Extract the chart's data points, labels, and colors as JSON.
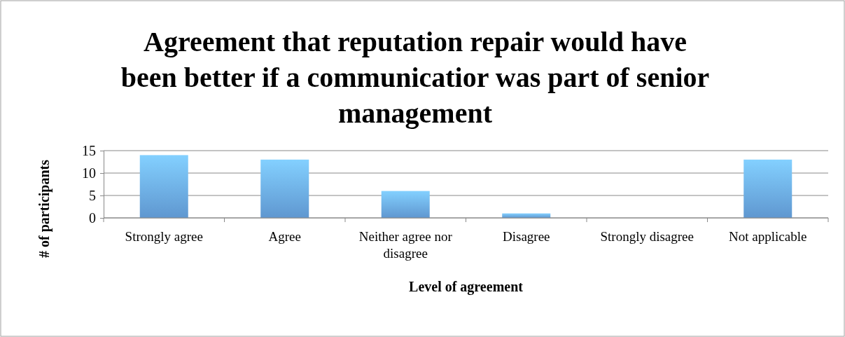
{
  "chart_data": {
    "type": "bar",
    "title": "Agreement that reputation repair would have been better if a communicatior was part of senior management",
    "xlabel": "Level of agreement",
    "ylabel": "# of participants",
    "categories": [
      "Strongly agree",
      "Agree",
      "Neither agree nor disagree",
      "Disagree",
      "Strongly disagree",
      "Not applicable"
    ],
    "values": [
      14,
      13,
      6,
      1,
      0,
      13
    ],
    "color": "#6aa8e8",
    "ylim": [
      0,
      15
    ],
    "yticks": [
      0,
      5,
      10,
      15
    ],
    "grid": "y"
  }
}
